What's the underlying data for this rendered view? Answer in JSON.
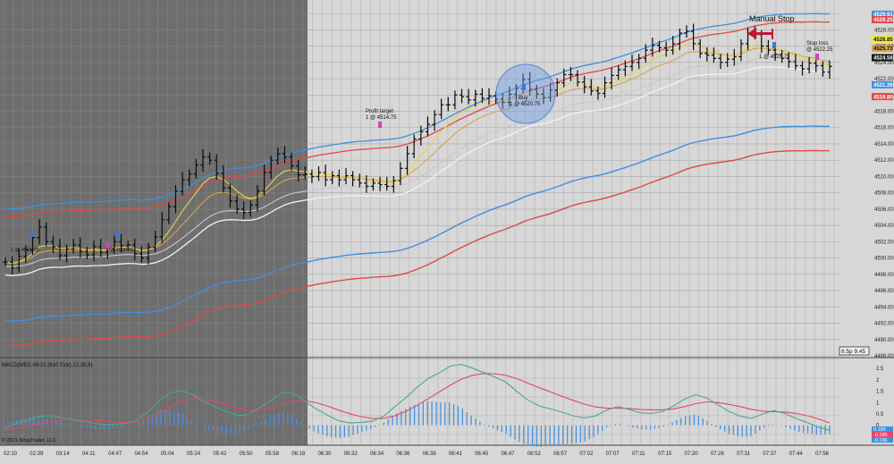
{
  "colors": {
    "background": "#d7d7d7",
    "dark_zone": "#6e6e6e",
    "grid": "#c2c2c2",
    "bar": "#0a0a0a",
    "upper_blue": "#3f8fe0",
    "upper_red": "#e04848",
    "lower_blue": "#3f8fe0",
    "lower_red": "#e04848",
    "yellow_ma": "#e8d43a",
    "orange_ma": "#d9a24a",
    "white_ma": "#f2f2f2",
    "macd": "#4aa88a",
    "signal": "#e04868",
    "histogram": "#4a90e0",
    "buy_circle": "#6f9ee6",
    "manual_stop_arrow": "#c01830"
  },
  "chart_data": [
    {
      "type": "candlestick",
      "title": "",
      "x_tick_labels": [
        "02:10",
        "02:39",
        "03:14",
        "04:11",
        "04:47",
        "04:54",
        "05:04",
        "05:24",
        "05:42",
        "05:50",
        "05:58",
        "06:18",
        "06:30",
        "06:32",
        "06:34",
        "06:36",
        "06:38",
        "06:41",
        "06:45",
        "06:47",
        "06:52",
        "06:57",
        "07:02",
        "07:07",
        "07:11",
        "07:15",
        "07:20",
        "07:26",
        "07:31",
        "07:37",
        "07:44",
        "07:56"
      ],
      "y_tick_labels": [
        "4488.00",
        "4490.00",
        "4492.00",
        "4494.00",
        "4496.00",
        "4498.00",
        "4500.00",
        "4502.00",
        "4504.00",
        "4506.00",
        "4508.00",
        "4510.00",
        "4512.00",
        "4514.00",
        "4516.00",
        "4518.00",
        "4520.00",
        "4522.00",
        "4524.00",
        "4526.00",
        "4528.00",
        "4530.00"
      ],
      "ylim": [
        4488,
        4531
      ],
      "price_tags": [
        {
          "label": "4529.91",
          "value": 4529.91,
          "color": "#3f8fe0"
        },
        {
          "label": "4529.25",
          "value": 4529.25,
          "color": "#e04848"
        },
        {
          "label": "4526.85",
          "value": 4526.85,
          "color": "#f2ea3a"
        },
        {
          "label": "4525.73",
          "value": 4525.73,
          "color": "#d9a24a"
        },
        {
          "label": "4524.58",
          "value": 4524.58,
          "color": "#111111"
        },
        {
          "label": "4521.26",
          "value": 4521.26,
          "color": "#3f8fe0"
        },
        {
          "label": "4519.80",
          "value": 4519.8,
          "color": "#e04848"
        }
      ],
      "close": [
        4499.5,
        4498.8,
        4500.2,
        4501.0,
        4502.5,
        4503.8,
        4502.0,
        4501.4,
        4500.3,
        4501.1,
        4501.6,
        4500.8,
        4500.4,
        4501.4,
        4500.7,
        4501.1,
        4502.0,
        4501.5,
        4501.6,
        4500.5,
        4500.0,
        4501.3,
        4502.6,
        4504.7,
        4506.3,
        4508.2,
        4509.6,
        4510.3,
        4511.4,
        4512.4,
        4512.0,
        4510.4,
        4508.6,
        4507.0,
        4506.0,
        4505.6,
        4506.5,
        4508.2,
        4510.5,
        4512.0,
        4512.8,
        4512.4,
        4511.3,
        4510.2,
        4510.3,
        4510.0,
        4510.5,
        4509.6,
        4510.1,
        4509.6,
        4510.1,
        4509.6,
        4509.2,
        4508.8,
        4509.2,
        4509.0,
        4508.8,
        4509.5,
        4511.0,
        4512.8,
        4514.6,
        4515.5,
        4516.4,
        4517.6,
        4518.8,
        4518.8,
        4520.0,
        4519.8,
        4519.4,
        4520.1,
        4519.6,
        4519.9,
        4519.5,
        4519.1,
        4520.1,
        4520.8,
        4521.9,
        4520.7,
        4520.1,
        4519.7,
        4520.6,
        4521.5,
        4522.5,
        4522.5,
        4521.6,
        4521.0,
        4520.5,
        4520.2,
        4521.5,
        4522.4,
        4523.1,
        4523.5,
        4524.0,
        4524.5,
        4525.5,
        4526.1,
        4525.8,
        4525.5,
        4526.3,
        4527.6,
        4527.8,
        4526.3,
        4525.1,
        4524.9,
        4524.5,
        4524.0,
        4524.4,
        4524.7,
        4526.3,
        4527.5,
        4527.4,
        4526.0,
        4525.5,
        4525.0,
        4524.5,
        4524.1,
        4523.6,
        4523.2,
        4523.9,
        4523.6,
        4522.8,
        4523.5
      ],
      "reference_levels": [
        {
          "label": "4520.75"
        }
      ],
      "annotations": [
        {
          "text": "Profit target",
          "text2": "1 @ 4514.75"
        },
        {
          "text": "Buy",
          "text2": "1 @ 4520.75"
        },
        {
          "text": "Manual Stop"
        },
        {
          "text": "Stop loss",
          "text2": "@ 4522.25"
        },
        {
          "text": "1 @ 4526.75"
        },
        {
          "text": "1 @ 4501.25"
        },
        {
          "text": "1 @ 4500.25"
        }
      ],
      "scale_label": "8.5p 9.45"
    },
    {
      "type": "macd",
      "label": "MACD(MES 09-21 (610 Tick),12,26,9)",
      "y_tick_labels": [
        "2.5",
        "2",
        "1.5",
        "1",
        "0.5",
        "0"
      ],
      "ylim": [
        -0.8,
        2.9
      ],
      "value_tags": [
        {
          "label": "0.185",
          "color": "#3f8fe0"
        },
        {
          "label": "-0.185",
          "color": "#e04868"
        },
        {
          "label": "-0.196",
          "color": "#3f8fe0"
        }
      ],
      "macd": [
        -0.12,
        0.03,
        0.21,
        0.37,
        0.42,
        0.35,
        0.26,
        0.18,
        0.1,
        0.03,
        0.04,
        0.08,
        0.24,
        0.61,
        1.08,
        1.44,
        1.52,
        1.33,
        1.02,
        0.8,
        0.6,
        0.42,
        0.5,
        0.79,
        1.1,
        1.45,
        1.4,
        1.05,
        0.72,
        0.45,
        0.2,
        0.1,
        0.12,
        0.18,
        0.38,
        0.8,
        1.2,
        1.65,
        2.05,
        2.3,
        2.6,
        2.68,
        2.52,
        2.32,
        2.12,
        1.9,
        1.48,
        1.1,
        0.85,
        0.72,
        0.58,
        0.42,
        0.32,
        0.41,
        0.66,
        0.82,
        0.7,
        0.55,
        0.52,
        0.6,
        0.85,
        1.15,
        1.35,
        1.2,
        0.9,
        0.6,
        0.4,
        0.3,
        0.5,
        0.65,
        0.52,
        0.3,
        0.12,
        -0.08,
        -0.22
      ],
      "signal": [
        -0.2,
        -0.15,
        -0.06,
        0.05,
        0.14,
        0.21,
        0.24,
        0.24,
        0.22,
        0.19,
        0.15,
        0.12,
        0.14,
        0.28,
        0.52,
        0.84,
        1.09,
        1.18,
        1.13,
        1.03,
        0.9,
        0.75,
        0.65,
        0.66,
        0.75,
        0.93,
        1.07,
        1.08,
        0.99,
        0.85,
        0.67,
        0.51,
        0.38,
        0.3,
        0.3,
        0.41,
        0.6,
        0.86,
        1.16,
        1.46,
        1.76,
        2.03,
        2.2,
        2.28,
        2.27,
        2.2,
        2.05,
        1.85,
        1.65,
        1.47,
        1.28,
        1.1,
        0.93,
        0.81,
        0.75,
        0.75,
        0.74,
        0.7,
        0.68,
        0.68,
        0.72,
        0.82,
        0.95,
        1.03,
        1.0,
        0.92,
        0.82,
        0.7,
        0.62,
        0.6,
        0.58,
        0.52,
        0.42,
        0.28,
        0.1
      ]
    }
  ],
  "footer": {
    "copyright": "© 2021 NinjaTrader, LLC"
  }
}
